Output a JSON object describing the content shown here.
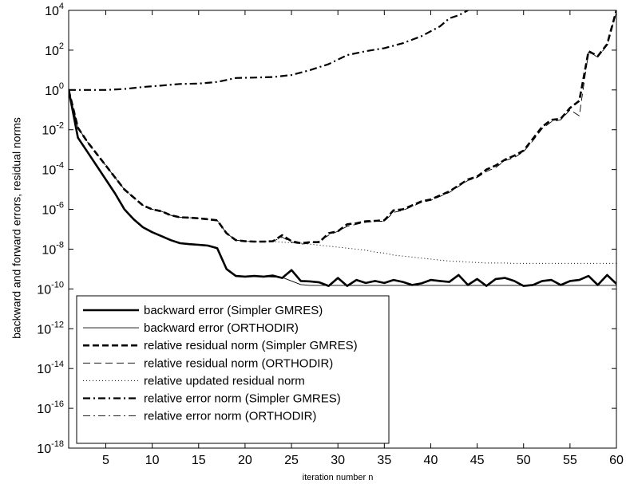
{
  "chart_data": {
    "type": "line",
    "title": "",
    "xlabel": "iteration number n",
    "ylabel": "backward and forward errors, residual norms",
    "xlim": [
      1,
      60
    ],
    "ylim_log10": [
      -18,
      4
    ],
    "y_scale": "log",
    "grid": false,
    "legend_placement": "lower-left",
    "x_ticks": [
      5,
      10,
      15,
      20,
      25,
      30,
      35,
      40,
      45,
      50,
      55,
      60
    ],
    "y_ticks": [
      {
        "base": "10",
        "exp": "4"
      },
      {
        "base": "10",
        "exp": "2"
      },
      {
        "base": "10",
        "exp": "0"
      },
      {
        "base": "10",
        "exp": "-2"
      },
      {
        "base": "10",
        "exp": "-4"
      },
      {
        "base": "10",
        "exp": "-6"
      },
      {
        "base": "10",
        "exp": "-8"
      },
      {
        "base": "10",
        "exp": "-10"
      },
      {
        "base": "10",
        "exp": "-12"
      },
      {
        "base": "10",
        "exp": "-14"
      },
      {
        "base": "10",
        "exp": "-16"
      },
      {
        "base": "10",
        "exp": "-18"
      }
    ],
    "series": [
      {
        "name": "backward error (Simpler GMRES)",
        "style": "solid-thick",
        "x": [
          1,
          2,
          3,
          4,
          5,
          6,
          7,
          8,
          9,
          10,
          11,
          12,
          13,
          14,
          15,
          16,
          17,
          18,
          19,
          20,
          21,
          22,
          23,
          24,
          25,
          26,
          27,
          28,
          29,
          30,
          31,
          32,
          33,
          34,
          35,
          36,
          37,
          38,
          39,
          40,
          41,
          42,
          43,
          44,
          45,
          46,
          47,
          48,
          49,
          50,
          51,
          52,
          53,
          54,
          55,
          56,
          57,
          58,
          59,
          60
        ],
        "log10_y": [
          0,
          -2.4,
          -3.1,
          -3.8,
          -4.5,
          -5.2,
          -6.0,
          -6.5,
          -6.9,
          -7.15,
          -7.35,
          -7.55,
          -7.7,
          -7.75,
          -7.78,
          -7.82,
          -7.95,
          -9.0,
          -9.35,
          -9.38,
          -9.35,
          -9.38,
          -9.33,
          -9.45,
          -9.05,
          -9.6,
          -9.62,
          -9.67,
          -9.85,
          -9.45,
          -9.85,
          -9.55,
          -9.7,
          -9.6,
          -9.7,
          -9.55,
          -9.65,
          -9.8,
          -9.72,
          -9.55,
          -9.6,
          -9.65,
          -9.3,
          -9.8,
          -9.5,
          -9.85,
          -9.5,
          -9.45,
          -9.6,
          -9.85,
          -9.8,
          -9.6,
          -9.55,
          -9.8,
          -9.6,
          -9.55,
          -9.35,
          -9.8,
          -9.3,
          -9.75
        ],
        "end_value": "2e-10"
      },
      {
        "name": "backward error (ORTHODIR)",
        "style": "solid-thin",
        "x": [
          1,
          2,
          3,
          4,
          5,
          6,
          7,
          8,
          9,
          10,
          11,
          12,
          13,
          14,
          15,
          16,
          17,
          18,
          19,
          20,
          21,
          22,
          23,
          24,
          25,
          26,
          27,
          28,
          30,
          35,
          40,
          45,
          50,
          55,
          60
        ],
        "log10_y": [
          0,
          -2.4,
          -3.1,
          -3.8,
          -4.5,
          -5.2,
          -6.0,
          -6.5,
          -6.9,
          -7.15,
          -7.35,
          -7.55,
          -7.7,
          -7.75,
          -7.78,
          -7.82,
          -7.95,
          -9.0,
          -9.35,
          -9.38,
          -9.36,
          -9.38,
          -9.4,
          -9.42,
          -9.6,
          -9.78,
          -9.82,
          -9.82,
          -9.82,
          -9.82,
          -9.82,
          -9.82,
          -9.82,
          -9.82,
          -9.82
        ]
      },
      {
        "name": "relative residual norm (Simpler GMRES)",
        "style": "dashed-thick",
        "x": [
          1,
          2,
          3,
          4,
          5,
          6,
          7,
          8,
          9,
          10,
          11,
          12,
          13,
          14,
          15,
          16,
          17,
          18,
          19,
          20,
          21,
          22,
          23,
          24,
          25,
          26,
          27,
          28,
          29,
          30,
          31,
          32,
          33,
          34,
          35,
          36,
          37,
          38,
          39,
          40,
          41,
          42,
          43,
          44,
          45,
          46,
          47,
          48,
          49,
          50,
          51,
          52,
          53,
          54,
          55,
          56,
          57,
          58,
          59,
          60
        ],
        "log10_y": [
          0,
          -1.9,
          -2.6,
          -3.2,
          -3.8,
          -4.4,
          -5.0,
          -5.4,
          -5.8,
          -6.0,
          -6.1,
          -6.3,
          -6.4,
          -6.42,
          -6.45,
          -6.5,
          -6.55,
          -7.2,
          -7.55,
          -7.6,
          -7.62,
          -7.62,
          -7.6,
          -7.3,
          -7.6,
          -7.7,
          -7.65,
          -7.65,
          -7.2,
          -7.1,
          -6.75,
          -6.7,
          -6.6,
          -6.58,
          -6.55,
          -6.05,
          -6.0,
          -5.8,
          -5.6,
          -5.5,
          -5.3,
          -5.1,
          -4.8,
          -4.5,
          -4.35,
          -4.0,
          -3.8,
          -3.5,
          -3.3,
          -3.05,
          -2.45,
          -1.85,
          -1.5,
          -1.45,
          -0.9,
          -0.55,
          1.95,
          1.7,
          2.3,
          4.0
        ]
      },
      {
        "name": "relative residual norm (ORTHODIR)",
        "style": "dashed-thin",
        "x": [
          1,
          2,
          3,
          4,
          5,
          6,
          7,
          8,
          9,
          10,
          11,
          12,
          13,
          14,
          15,
          16,
          17,
          18,
          19,
          20,
          21,
          22,
          23,
          24,
          25,
          26,
          27,
          28,
          29,
          30,
          31,
          32,
          33,
          34,
          35,
          36,
          37,
          38,
          39,
          40,
          41,
          42,
          43,
          44,
          45,
          46,
          47,
          48,
          49,
          50,
          51,
          52,
          53,
          54,
          55,
          56,
          57,
          58,
          59,
          60
        ],
        "log10_y": [
          0,
          -1.9,
          -2.6,
          -3.2,
          -3.8,
          -4.4,
          -5.0,
          -5.4,
          -5.8,
          -6.0,
          -6.1,
          -6.3,
          -6.4,
          -6.42,
          -6.45,
          -6.5,
          -6.55,
          -7.2,
          -7.55,
          -7.6,
          -7.62,
          -7.62,
          -7.6,
          -7.4,
          -7.65,
          -7.75,
          -7.7,
          -7.6,
          -7.3,
          -7.1,
          -6.85,
          -6.75,
          -6.65,
          -6.6,
          -6.6,
          -6.15,
          -6.05,
          -5.85,
          -5.65,
          -5.55,
          -5.35,
          -5.15,
          -4.85,
          -4.55,
          -4.4,
          -4.1,
          -3.9,
          -3.55,
          -3.4,
          -3.1,
          -2.55,
          -1.95,
          -1.6,
          -1.5,
          -1.0,
          -1.3,
          1.9,
          1.65,
          2.25,
          3.9
        ]
      },
      {
        "name": "relative updated residual norm",
        "style": "dotted",
        "x": [
          1,
          2,
          3,
          4,
          5,
          6,
          7,
          8,
          9,
          10,
          11,
          12,
          13,
          14,
          15,
          16,
          17,
          18,
          19,
          20,
          21,
          22,
          23,
          24,
          25,
          26,
          27,
          28,
          29,
          30,
          31,
          32,
          33,
          34,
          35,
          36,
          37,
          38,
          39,
          40,
          41,
          42,
          43,
          44,
          45,
          46,
          47,
          48,
          49,
          50,
          51,
          52,
          53,
          54,
          55,
          56,
          57,
          58,
          59,
          60
        ],
        "log10_y": [
          0,
          -1.9,
          -2.6,
          -3.2,
          -3.8,
          -4.4,
          -5.0,
          -5.4,
          -5.8,
          -6.0,
          -6.1,
          -6.3,
          -6.4,
          -6.42,
          -6.45,
          -6.5,
          -6.55,
          -7.2,
          -7.55,
          -7.6,
          -7.62,
          -7.62,
          -7.62,
          -7.65,
          -7.68,
          -7.7,
          -7.75,
          -7.8,
          -7.85,
          -7.9,
          -7.95,
          -8.0,
          -8.05,
          -8.15,
          -8.2,
          -8.3,
          -8.35,
          -8.4,
          -8.45,
          -8.5,
          -8.55,
          -8.6,
          -8.62,
          -8.65,
          -8.67,
          -8.7,
          -8.7,
          -8.7,
          -8.72,
          -8.72,
          -8.72,
          -8.72,
          -8.72,
          -8.72,
          -8.72,
          -8.72,
          -8.72,
          -8.72,
          -8.72,
          -8.72
        ]
      },
      {
        "name": "relative error norm (Simpler GMRES)",
        "style": "dashdot-thick",
        "x": [
          1,
          3,
          5,
          7,
          9,
          11,
          13,
          15,
          17,
          19,
          21,
          23,
          25,
          27,
          29,
          31,
          33,
          35,
          37,
          39,
          41,
          42,
          43,
          44
        ],
        "log10_y": [
          0,
          0,
          0,
          0.05,
          0.15,
          0.22,
          0.3,
          0.32,
          0.4,
          0.6,
          0.62,
          0.65,
          0.75,
          1.0,
          1.3,
          1.75,
          1.95,
          2.1,
          2.35,
          2.7,
          3.2,
          3.6,
          3.75,
          4.0
        ]
      },
      {
        "name": "relative error norm (ORTHODIR)",
        "style": "dashdot-thin",
        "x": [
          1,
          3,
          5,
          7,
          9,
          11,
          13,
          15,
          17,
          19,
          21,
          23,
          25,
          27,
          29,
          31,
          33,
          35,
          37,
          39,
          41,
          42,
          43,
          44
        ],
        "log10_y": [
          0,
          0,
          0,
          0.05,
          0.15,
          0.22,
          0.3,
          0.32,
          0.4,
          0.6,
          0.62,
          0.65,
          0.75,
          1.0,
          1.3,
          1.75,
          1.95,
          2.1,
          2.35,
          2.7,
          3.2,
          3.6,
          3.75,
          4.0
        ]
      }
    ]
  }
}
